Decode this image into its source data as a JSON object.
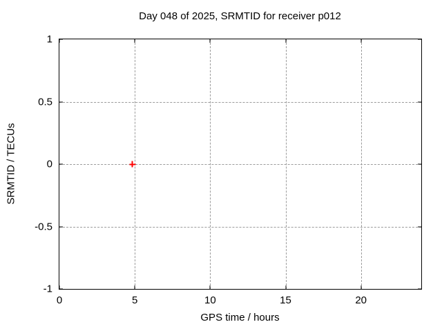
{
  "chart_data": {
    "type": "scatter",
    "title": "Day 048 of 2025, SRMTID for receiver p012",
    "xlabel": "GPS time / hours",
    "ylabel": "SRMTID / TECUs",
    "xlim": [
      0,
      24
    ],
    "ylim": [
      -1,
      1
    ],
    "grid": true,
    "legend": "none",
    "x_ticks": [
      {
        "v": 0,
        "label": "0"
      },
      {
        "v": 5,
        "label": "5"
      },
      {
        "v": 10,
        "label": "10"
      },
      {
        "v": 15,
        "label": "15"
      },
      {
        "v": 20,
        "label": "20"
      }
    ],
    "y_ticks": [
      {
        "v": -1,
        "label": "-1"
      },
      {
        "v": -0.5,
        "label": "-0.5"
      },
      {
        "v": 0,
        "label": "0"
      },
      {
        "v": 0.5,
        "label": "0.5"
      },
      {
        "v": 1,
        "label": "1"
      }
    ],
    "series": [
      {
        "name": "SRMTID",
        "marker": "plus",
        "color": "#ff0000",
        "points": [
          {
            "x": 4.85,
            "y": 0.0
          }
        ]
      }
    ]
  },
  "colors": {
    "background": "#ffffff",
    "plot_border": "#000000",
    "grid": "#9a9a9a",
    "text": "#000000",
    "marker": "#ff0000"
  }
}
